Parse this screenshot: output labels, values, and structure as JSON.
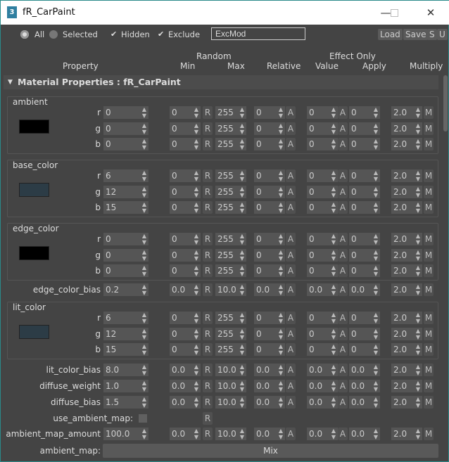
{
  "window": {
    "title": "fR_CarPaint",
    "icon_label": "3"
  },
  "toolbar": {
    "all_label": "All",
    "selected_label": "Selected",
    "hidden_label": "Hidden",
    "exclude_label": "Exclude",
    "filter_value": "ExcMod",
    "load_label": "Load",
    "save_label": "Save",
    "s_label": "S",
    "u_label": "U",
    "all_selected": true,
    "hidden_checked": true,
    "exclude_checked": true
  },
  "headers": {
    "random": "Random",
    "effect_only": "Effect Only",
    "property": "Property",
    "min": "Min",
    "max": "Max",
    "relative": "Relative",
    "value": "Value",
    "apply": "Apply",
    "multiply": "Multiply"
  },
  "rollout": {
    "title": "Material Properties : fR_CarPaint"
  },
  "buttons": {
    "r": "R",
    "a": "A",
    "m": "M"
  },
  "items": [
    {
      "type": "group",
      "name": "ambient",
      "swatch": "#000000",
      "rows": [
        {
          "label": "r",
          "value": "0",
          "min": "0",
          "max": "255",
          "relative": "0",
          "eff_value": "0",
          "apply": "0",
          "multiply": "2.0"
        },
        {
          "label": "g",
          "value": "0",
          "min": "0",
          "max": "255",
          "relative": "0",
          "eff_value": "0",
          "apply": "0",
          "multiply": "2.0"
        },
        {
          "label": "b",
          "value": "0",
          "min": "0",
          "max": "255",
          "relative": "0",
          "eff_value": "0",
          "apply": "0",
          "multiply": "2.0"
        }
      ]
    },
    {
      "type": "group",
      "name": "base_color",
      "swatch": "#2c3c46",
      "rows": [
        {
          "label": "r",
          "value": "6",
          "min": "0",
          "max": "255",
          "relative": "0",
          "eff_value": "0",
          "apply": "0",
          "multiply": "2.0"
        },
        {
          "label": "g",
          "value": "12",
          "min": "0",
          "max": "255",
          "relative": "0",
          "eff_value": "0",
          "apply": "0",
          "multiply": "2.0"
        },
        {
          "label": "b",
          "value": "15",
          "min": "0",
          "max": "255",
          "relative": "0",
          "eff_value": "0",
          "apply": "0",
          "multiply": "2.0"
        }
      ]
    },
    {
      "type": "group",
      "name": "edge_color",
      "swatch": "#000000",
      "rows": [
        {
          "label": "r",
          "value": "0",
          "min": "0",
          "max": "255",
          "relative": "0",
          "eff_value": "0",
          "apply": "0",
          "multiply": "2.0"
        },
        {
          "label": "g",
          "value": "0",
          "min": "0",
          "max": "255",
          "relative": "0",
          "eff_value": "0",
          "apply": "0",
          "multiply": "2.0"
        },
        {
          "label": "b",
          "value": "0",
          "min": "0",
          "max": "255",
          "relative": "0",
          "eff_value": "0",
          "apply": "0",
          "multiply": "2.0"
        }
      ]
    },
    {
      "type": "row",
      "label": "edge_color_bias",
      "value": "0.2",
      "min": "0.0",
      "max": "10.0",
      "relative": "0.0",
      "eff_value": "0.0",
      "apply": "0.0",
      "multiply": "2.0"
    },
    {
      "type": "group",
      "name": "lit_color",
      "swatch": "#2c3c46",
      "rows": [
        {
          "label": "r",
          "value": "6",
          "min": "0",
          "max": "255",
          "relative": "0",
          "eff_value": "0",
          "apply": "0",
          "multiply": "2.0"
        },
        {
          "label": "g",
          "value": "12",
          "min": "0",
          "max": "255",
          "relative": "0",
          "eff_value": "0",
          "apply": "0",
          "multiply": "2.0"
        },
        {
          "label": "b",
          "value": "15",
          "min": "0",
          "max": "255",
          "relative": "0",
          "eff_value": "0",
          "apply": "0",
          "multiply": "2.0"
        }
      ]
    },
    {
      "type": "row",
      "label": "lit_color_bias",
      "value": "8.0",
      "min": "0.0",
      "max": "10.0",
      "relative": "0.0",
      "eff_value": "0.0",
      "apply": "0.0",
      "multiply": "2.0"
    },
    {
      "type": "row",
      "label": "diffuse_weight",
      "value": "1.0",
      "min": "0.0",
      "max": "10.0",
      "relative": "0.0",
      "eff_value": "0.0",
      "apply": "0.0",
      "multiply": "2.0"
    },
    {
      "type": "row",
      "label": "diffuse_bias",
      "value": "1.5",
      "min": "0.0",
      "max": "10.0",
      "relative": "0.0",
      "eff_value": "0.0",
      "apply": "0.0",
      "multiply": "2.0"
    },
    {
      "type": "bool",
      "label": "use_ambient_map:",
      "checked": false
    },
    {
      "type": "row",
      "label": "ambient_map_amount",
      "value": "100.0",
      "min": "0.0",
      "max": "10.0",
      "relative": "0.0",
      "eff_value": "0.0",
      "apply": "0.0",
      "multiply": "2.0"
    },
    {
      "type": "map",
      "label": "ambient_map:",
      "button": "Mix"
    }
  ]
}
